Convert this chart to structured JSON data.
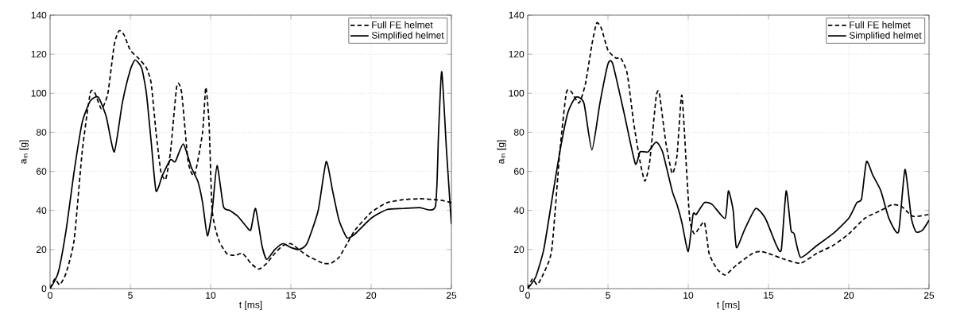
{
  "chart_data": [
    {
      "type": "line",
      "xlabel": "t [ms]",
      "ylabel": "a$_{m}$ [g]",
      "xlim": [
        0,
        25
      ],
      "ylim": [
        0,
        140
      ],
      "xticks": [
        0,
        5,
        10,
        15,
        20,
        25
      ],
      "yticks": [
        0,
        20,
        40,
        60,
        80,
        100,
        120,
        140
      ],
      "grid": true,
      "legend": "top right",
      "marker": "none",
      "series": [
        {
          "name": "Full FE helmet",
          "color": "#000000",
          "line_style": "dashed",
          "x": [
            0,
            0.3,
            0.6,
            1.0,
            1.5,
            2.0,
            2.5,
            2.8,
            3.2,
            3.6,
            4.0,
            4.3,
            4.6,
            5.0,
            5.5,
            6.0,
            6.3,
            6.6,
            6.9,
            7.2,
            7.5,
            7.9,
            8.2,
            8.6,
            9.0,
            9.5,
            9.7,
            9.9,
            10.1,
            10.5,
            11.0,
            11.5,
            12.0,
            12.5,
            13.0,
            13.5,
            14.0,
            14.5,
            15.0,
            15.5,
            16.0,
            17.0,
            17.5,
            18.0,
            18.5,
            19.0,
            20.0,
            21,
            22,
            23,
            24,
            24.5,
            25
          ],
          "values": [
            0,
            5,
            2,
            8,
            25,
            70,
            100,
            100,
            92,
            100,
            125,
            132,
            130,
            122,
            118,
            113,
            105,
            80,
            60,
            56,
            70,
            104,
            100,
            65,
            58,
            80,
            103,
            85,
            40,
            25,
            18,
            17,
            18,
            13,
            10,
            13,
            18,
            22,
            23,
            20,
            17,
            13,
            13,
            16,
            23,
            30,
            39,
            44,
            45.5,
            46,
            45.5,
            45,
            44
          ]
        },
        {
          "name": "Simplified helmet",
          "color": "#000000",
          "line_style": "solid",
          "x": [
            0,
            0.5,
            1,
            1.5,
            2.0,
            2.5,
            3.0,
            3.5,
            4.0,
            4.5,
            5.0,
            5.3,
            5.7,
            6.0,
            6.3,
            6.6,
            7.0,
            7.5,
            7.8,
            8.3,
            8.8,
            9.2,
            9.5,
            9.8,
            10.1,
            10.4,
            10.8,
            11.2,
            11.7,
            12.2,
            12.5,
            12.8,
            13.2,
            13.5,
            14.0,
            14.5,
            15.0,
            15.5,
            16.0,
            16.7,
            17.2,
            17.6,
            18.0,
            18.5,
            19,
            20,
            21,
            22,
            23,
            24,
            24.2,
            24.4,
            24.7,
            25
          ],
          "values": [
            0,
            8,
            30,
            60,
            85,
            96,
            98,
            88,
            70,
            95,
            112,
            117,
            113,
            100,
            75,
            50,
            58,
            66,
            65,
            74,
            62,
            55,
            44,
            27,
            40,
            63,
            42,
            40,
            37,
            32,
            30,
            41,
            22,
            15,
            20,
            23,
            21,
            20,
            23,
            40,
            65,
            50,
            35,
            26,
            28,
            36,
            40.5,
            41,
            41.5,
            42,
            80,
            111,
            70,
            33
          ]
        }
      ]
    },
    {
      "type": "line",
      "xlabel": "t [ms]",
      "ylabel": "a$_{m}$ [g]",
      "xlim": [
        0,
        25
      ],
      "ylim": [
        0,
        140
      ],
      "xticks": [
        0,
        5,
        10,
        15,
        20,
        25
      ],
      "yticks": [
        0,
        20,
        40,
        60,
        80,
        100,
        120,
        140
      ],
      "grid": true,
      "legend": "top right",
      "marker": "none",
      "series": [
        {
          "name": "Full FE helmet",
          "color": "#000000",
          "line_style": "dashed",
          "x": [
            0,
            0.3,
            0.6,
            1.0,
            1.5,
            2,
            2.4,
            2.7,
            3.2,
            3.6,
            4.0,
            4.3,
            4.6,
            5.0,
            5.5,
            5.8,
            6.2,
            6.6,
            7.0,
            7.3,
            7.6,
            8.0,
            8.2,
            8.6,
            9.0,
            9.3,
            9.6,
            9.9,
            10.1,
            10.4,
            11.0,
            11.3,
            11.8,
            12.3,
            13,
            14,
            14.5,
            15,
            16,
            17,
            18,
            19,
            20,
            21,
            22,
            22.7,
            23.3,
            24,
            25
          ],
          "values": [
            0,
            5,
            2,
            8,
            20,
            70,
            100,
            101,
            95,
            105,
            125,
            136,
            133,
            122,
            118,
            118,
            110,
            85,
            65,
            55,
            65,
            98,
            100,
            75,
            59,
            68,
            99,
            60,
            35,
            28,
            34,
            18,
            10,
            7,
            12,
            18,
            19,
            18,
            15,
            13,
            18,
            22,
            28,
            36,
            40,
            43,
            42,
            37,
            38
          ]
        },
        {
          "name": "Simplified helmet",
          "color": "#000000",
          "line_style": "solid",
          "x": [
            0,
            0.5,
            1,
            1.5,
            2,
            2.5,
            3.0,
            3.5,
            4.0,
            4.5,
            5.0,
            5.3,
            6,
            6.7,
            7.0,
            7.5,
            8.0,
            8.4,
            9.0,
            9.3,
            9.6,
            10.0,
            10.3,
            10.5,
            11,
            11.5,
            12.3,
            12.5,
            12.8,
            13.0,
            13.5,
            14.2,
            14.8,
            15.5,
            15.8,
            16.1,
            16.4,
            16.6,
            17.0,
            18,
            19,
            20,
            20.5,
            20.8,
            21.1,
            21.5,
            22,
            22.5,
            23.1,
            23.5,
            23.9,
            24.2,
            24.6,
            25
          ],
          "values": [
            0,
            6,
            20,
            45,
            70,
            90,
            98,
            95,
            71,
            95,
            115,
            115,
            90,
            64,
            70,
            70,
            75,
            70,
            50,
            43,
            34,
            19,
            38,
            38,
            44,
            43,
            36,
            50,
            40,
            21,
            30,
            41,
            36,
            22,
            20,
            50,
            30,
            28,
            16,
            22,
            28,
            36,
            44,
            46,
            65,
            58,
            50,
            36,
            29,
            61,
            36,
            29,
            30,
            35
          ]
        }
      ]
    }
  ]
}
